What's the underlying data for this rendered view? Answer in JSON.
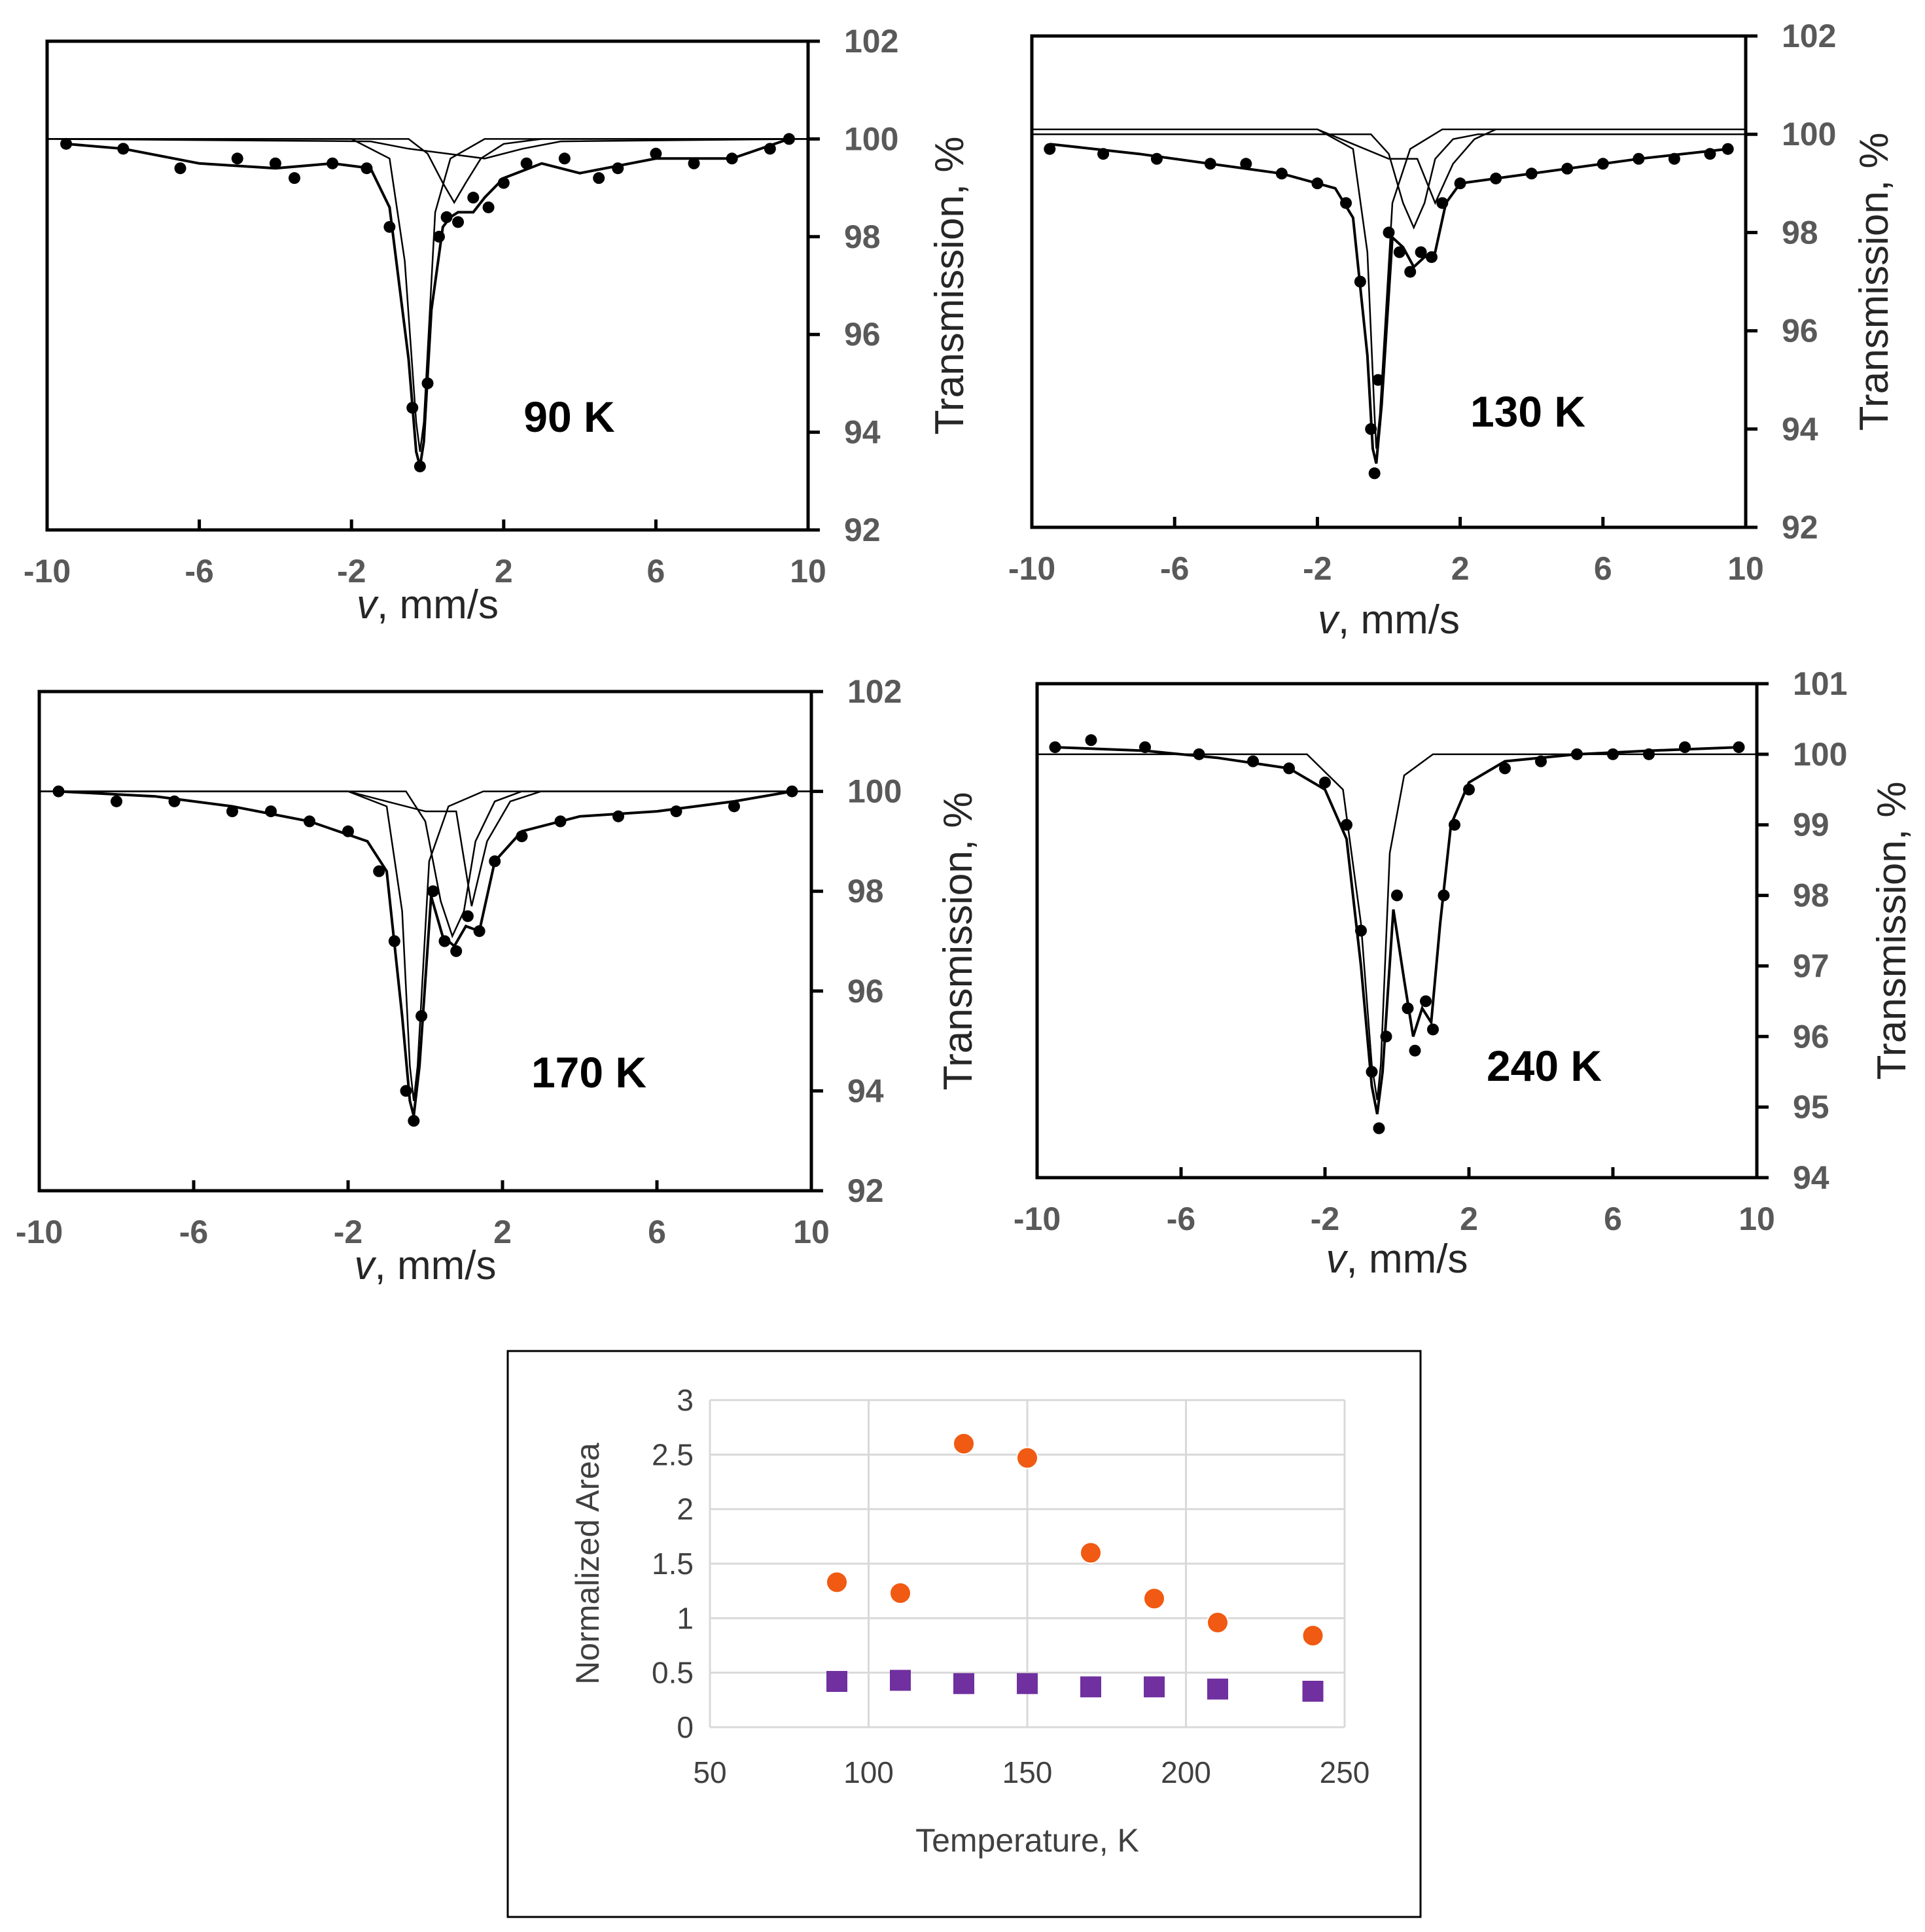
{
  "chart_data": [
    {
      "type": "line",
      "title": "90 K",
      "temperature_label": "90 K",
      "xlabel_italic": "v",
      "xlabel_rest": ", mm/s",
      "ylabel": "Transmission, %",
      "xlim": [
        -10,
        10
      ],
      "ylim": [
        92,
        102
      ],
      "x_ticks": [
        "-10",
        "-6",
        "-2",
        "2",
        "6",
        "10"
      ],
      "y_ticks": [
        "92",
        "94",
        "96",
        "98",
        "100",
        "102"
      ],
      "series": [
        {
          "name": "experimental",
          "style": "points",
          "x": [
            -9.5,
            -8,
            -6.5,
            -5,
            -4,
            -3.5,
            -2.5,
            -1.6,
            -1.0,
            -0.4,
            -0.2,
            0.0,
            0.3,
            0.5,
            0.8,
            1.2,
            1.6,
            2,
            2.6,
            3.6,
            4.5,
            5,
            6,
            7,
            8,
            9,
            9.5
          ],
          "values": [
            99.9,
            99.8,
            99.4,
            99.6,
            99.5,
            99.2,
            99.5,
            99.4,
            98.2,
            94.5,
            93.3,
            95.0,
            98.0,
            98.4,
            98.3,
            98.8,
            98.6,
            99.1,
            99.5,
            99.6,
            99.2,
            99.4,
            99.7,
            99.5,
            99.6,
            99.8,
            100.0
          ]
        },
        {
          "name": "fit-total",
          "style": "line",
          "x": [
            -9.5,
            -8,
            -6,
            -4,
            -2.5,
            -1.5,
            -1,
            -0.5,
            -0.3,
            -0.2,
            -0.1,
            0.1,
            0.4,
            0.6,
            0.8,
            1.0,
            1.2,
            1.5,
            2,
            3,
            4,
            6,
            8,
            9.5
          ],
          "values": [
            99.9,
            99.8,
            99.5,
            99.4,
            99.5,
            99.4,
            98.6,
            95.5,
            93.6,
            93.3,
            93.8,
            96.5,
            98.2,
            98.4,
            98.5,
            98.5,
            98.5,
            98.8,
            99.2,
            99.5,
            99.3,
            99.6,
            99.6,
            100.0
          ]
        },
        {
          "name": "subspectrum-1",
          "style": "line",
          "x": [
            -10,
            -2,
            -1,
            -0.6,
            -0.3,
            -0.2,
            -0.1,
            0.2,
            0.6,
            1.5,
            10
          ],
          "values": [
            100,
            100,
            99.6,
            97.5,
            94.2,
            93.6,
            94.2,
            98.5,
            99.6,
            100,
            100
          ]
        },
        {
          "name": "subspectrum-2",
          "style": "line",
          "x": [
            -10,
            -0.5,
            0,
            0.4,
            0.7,
            1.0,
            1.4,
            2,
            3,
            10
          ],
          "values": [
            100,
            100,
            99.7,
            99.1,
            98.7,
            99.1,
            99.6,
            99.9,
            100,
            100
          ]
        },
        {
          "name": "subspectrum-3",
          "style": "line",
          "x": [
            -10,
            -1.5,
            -0.5,
            0.5,
            1.5,
            2.5,
            3.5,
            10
          ],
          "values": [
            100,
            99.95,
            99.8,
            99.7,
            99.6,
            99.8,
            99.95,
            100
          ]
        }
      ]
    },
    {
      "type": "line",
      "title": "130 K",
      "temperature_label": "130 K",
      "xlabel_italic": "v",
      "xlabel_rest": ", mm/s",
      "ylabel": "Transmission, %",
      "xlim": [
        -10,
        10
      ],
      "ylim": [
        92,
        102
      ],
      "x_ticks": [
        "-10",
        "-6",
        "-2",
        "2",
        "6",
        "10"
      ],
      "y_ticks": [
        "92",
        "94",
        "96",
        "98",
        "100",
        "102"
      ],
      "series": [
        {
          "name": "experimental",
          "style": "points",
          "x": [
            -9.5,
            -8,
            -6.5,
            -5,
            -4,
            -3,
            -2,
            -1.2,
            -0.8,
            -0.5,
            -0.4,
            -0.3,
            0.0,
            0.3,
            0.6,
            0.9,
            1.2,
            1.5,
            2,
            3,
            4,
            5,
            6,
            7,
            8,
            9,
            9.5
          ],
          "values": [
            99.7,
            99.6,
            99.5,
            99.4,
            99.4,
            99.2,
            99.0,
            98.6,
            97.0,
            94.0,
            93.1,
            95.0,
            98.0,
            97.6,
            97.2,
            97.6,
            97.5,
            98.6,
            99.0,
            99.1,
            99.2,
            99.3,
            99.4,
            99.5,
            99.5,
            99.6,
            99.7
          ]
        },
        {
          "name": "fit-total",
          "style": "line",
          "x": [
            -9.5,
            -7,
            -5,
            -3,
            -1.5,
            -1,
            -0.6,
            -0.45,
            -0.35,
            -0.2,
            0.1,
            0.4,
            0.7,
            1.0,
            1.3,
            1.6,
            2,
            3,
            5,
            7,
            9.5
          ],
          "values": [
            99.8,
            99.6,
            99.4,
            99.2,
            98.9,
            98.3,
            95.5,
            93.6,
            93.3,
            94.5,
            97.9,
            97.7,
            97.3,
            97.5,
            97.6,
            98.6,
            99.0,
            99.1,
            99.3,
            99.5,
            99.7
          ]
        },
        {
          "name": "subspectrum-1",
          "style": "line",
          "x": [
            -10,
            -2,
            -1,
            -0.6,
            -0.4,
            -0.35,
            -0.25,
            0.1,
            0.6,
            1.5,
            10
          ],
          "values": [
            100.1,
            100.1,
            99.7,
            97.6,
            94.3,
            93.6,
            94.3,
            98.6,
            99.7,
            100.1,
            100.1
          ]
        },
        {
          "name": "subspectrum-2",
          "style": "line",
          "x": [
            -10,
            -0.5,
            0,
            0.4,
            0.7,
            1.0,
            1.3,
            1.8,
            2.5,
            10
          ],
          "values": [
            100,
            100,
            99.6,
            98.6,
            98.1,
            98.6,
            99.5,
            99.9,
            100,
            100
          ]
        },
        {
          "name": "subspectrum-3",
          "style": "line",
          "x": [
            -10,
            -2,
            -1,
            0,
            0.8,
            1.3,
            1.8,
            2.4,
            3,
            10
          ],
          "values": [
            100.1,
            100.1,
            99.8,
            99.5,
            99.5,
            98.6,
            99.4,
            99.9,
            100.1,
            100.1
          ]
        }
      ]
    },
    {
      "type": "line",
      "title": "170 K",
      "temperature_label": "170 K",
      "xlabel_italic": "v",
      "xlabel_rest": ", mm/s",
      "ylabel": "Transmission, %",
      "xlim": [
        -10,
        10
      ],
      "ylim": [
        92,
        102
      ],
      "x_ticks": [
        "-10",
        "-6",
        "-2",
        "2",
        "6",
        "10"
      ],
      "y_ticks": [
        "92",
        "94",
        "96",
        "98",
        "100",
        "102"
      ],
      "series": [
        {
          "name": "experimental",
          "style": "points",
          "x": [
            -9.5,
            -8,
            -6.5,
            -5,
            -4,
            -3,
            -2,
            -1.2,
            -0.8,
            -0.5,
            -0.3,
            -0.1,
            0.2,
            0.5,
            0.8,
            1.1,
            1.4,
            1.8,
            2.5,
            3.5,
            5,
            6.5,
            8,
            9.5
          ],
          "values": [
            100.0,
            99.8,
            99.8,
            99.6,
            99.6,
            99.4,
            99.2,
            98.4,
            97.0,
            94.0,
            93.4,
            95.5,
            98.0,
            97.0,
            96.8,
            97.5,
            97.2,
            98.6,
            99.1,
            99.4,
            99.5,
            99.6,
            99.7,
            100.0
          ]
        },
        {
          "name": "fit-total",
          "style": "line",
          "x": [
            -9.5,
            -7,
            -5,
            -3,
            -1.5,
            -1,
            -0.6,
            -0.4,
            -0.3,
            -0.15,
            0.15,
            0.45,
            0.75,
            1.05,
            1.4,
            1.8,
            2.5,
            4,
            6,
            8,
            9.5
          ],
          "values": [
            100.0,
            99.9,
            99.7,
            99.4,
            99.0,
            98.4,
            95.5,
            93.8,
            93.5,
            94.5,
            97.9,
            97.1,
            96.9,
            97.3,
            97.2,
            98.6,
            99.2,
            99.5,
            99.6,
            99.8,
            100.0
          ]
        },
        {
          "name": "subspectrum-1",
          "style": "line",
          "x": [
            -10,
            -2,
            -1,
            -0.6,
            -0.4,
            -0.3,
            -0.2,
            0.1,
            0.6,
            1.5,
            10
          ],
          "values": [
            100,
            100,
            99.7,
            97.6,
            94.5,
            93.8,
            94.5,
            98.6,
            99.7,
            100,
            100
          ]
        },
        {
          "name": "subspectrum-2",
          "style": "line",
          "x": [
            -10,
            -0.5,
            0,
            0.4,
            0.7,
            1.0,
            1.3,
            1.8,
            2.5,
            10
          ],
          "values": [
            100,
            100,
            99.4,
            97.8,
            97.1,
            97.6,
            99.0,
            99.8,
            100,
            100
          ]
        },
        {
          "name": "subspectrum-3",
          "style": "line",
          "x": [
            -10,
            -2,
            -1,
            0,
            0.8,
            1.2,
            1.6,
            2.2,
            3,
            10
          ],
          "values": [
            100,
            100,
            99.8,
            99.6,
            99.6,
            97.7,
            99.0,
            99.8,
            100,
            100
          ]
        }
      ]
    },
    {
      "type": "line",
      "title": "240 K",
      "temperature_label": "240 K",
      "xlabel_italic": "v",
      "xlabel_rest": ", mm/s",
      "ylabel": "Transmission, %",
      "xlim": [
        -10,
        10
      ],
      "ylim": [
        94,
        101
      ],
      "x_ticks": [
        "-10",
        "-6",
        "-2",
        "2",
        "6",
        "10"
      ],
      "y_ticks": [
        "94",
        "95",
        "96",
        "97",
        "98",
        "99",
        "100",
        "101"
      ],
      "series": [
        {
          "name": "experimental",
          "style": "points",
          "x": [
            -9.5,
            -8.5,
            -7,
            -5.5,
            -4,
            -3,
            -2,
            -1.4,
            -1.0,
            -0.7,
            -0.5,
            -0.3,
            0.0,
            0.3,
            0.5,
            0.8,
            1.0,
            1.3,
            1.6,
            2,
            3,
            4,
            5,
            6,
            7,
            8,
            9.5
          ],
          "values": [
            100.1,
            100.2,
            100.1,
            100.0,
            99.9,
            99.8,
            99.6,
            99.0,
            97.5,
            95.5,
            94.7,
            96.0,
            98.0,
            96.4,
            95.8,
            96.5,
            96.1,
            98.0,
            99.0,
            99.5,
            99.8,
            99.9,
            100.0,
            100.0,
            100.0,
            100.1,
            100.1
          ]
        },
        {
          "name": "fit-total",
          "style": "line",
          "x": [
            -9.5,
            -7,
            -5,
            -3,
            -2,
            -1.4,
            -1.0,
            -0.7,
            -0.55,
            -0.4,
            -0.1,
            0.2,
            0.45,
            0.7,
            0.95,
            1.2,
            1.5,
            2,
            3,
            5,
            7,
            9.5
          ],
          "values": [
            100.1,
            100.05,
            99.95,
            99.8,
            99.5,
            98.8,
            97.0,
            95.3,
            94.9,
            95.5,
            97.8,
            96.8,
            96.0,
            96.4,
            96.2,
            97.6,
            99.0,
            99.6,
            99.9,
            100.0,
            100.05,
            100.1
          ]
        },
        {
          "name": "subspectrum-1",
          "style": "line",
          "x": [
            -10,
            -2.5,
            -1.5,
            -1.0,
            -0.7,
            -0.55,
            -0.45,
            -0.2,
            0.2,
            1.0,
            10
          ],
          "values": [
            100,
            100,
            99.5,
            97.6,
            95.6,
            95.1,
            95.6,
            98.6,
            99.7,
            100,
            100
          ]
        }
      ]
    },
    {
      "type": "scatter",
      "xlabel": "Temperature, K",
      "ylabel": "Normalized Area",
      "xlim": [
        50,
        250
      ],
      "ylim": [
        0,
        3
      ],
      "x_ticks": [
        "50",
        "100",
        "150",
        "200",
        "250"
      ],
      "y_ticks": [
        "0",
        "0.5",
        "1",
        "1.5",
        "2",
        "2.5",
        "3"
      ],
      "grid": true,
      "series": [
        {
          "name": "orange-circles",
          "marker": "circle",
          "color": "#f05a12",
          "x": [
            90,
            110,
            130,
            150,
            170,
            190,
            210,
            240
          ],
          "values": [
            1.33,
            1.23,
            2.6,
            2.47,
            1.6,
            1.18,
            0.96,
            0.84
          ]
        },
        {
          "name": "purple-squares",
          "marker": "square",
          "color": "#7030a0",
          "x": [
            90,
            110,
            130,
            150,
            170,
            190,
            210,
            240
          ],
          "values": [
            0.42,
            0.43,
            0.4,
            0.4,
            0.37,
            0.37,
            0.35,
            0.33
          ]
        }
      ]
    }
  ]
}
